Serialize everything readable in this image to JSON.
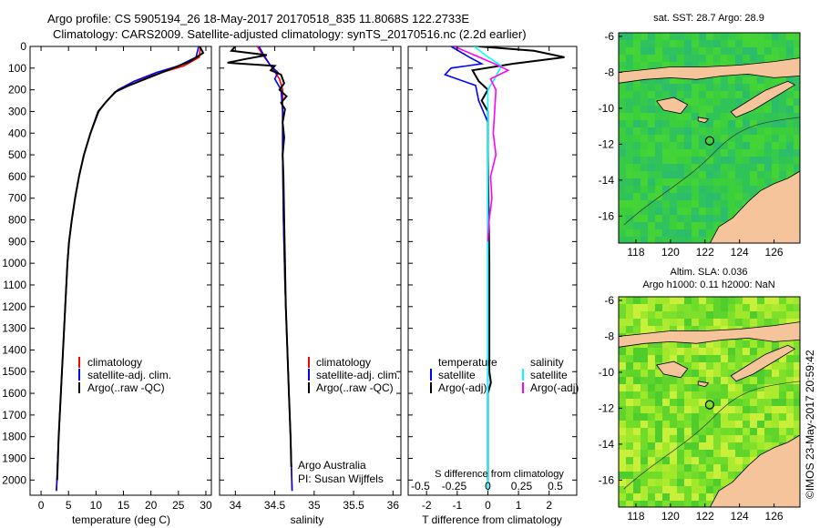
{
  "title": {
    "line1": "Argo profile: CS 5905194_26 18-May-2017 20170518_835 11.8068S 122.2733E",
    "line2": "Climatology: CARS2009. Satellite-adjusted climatology: synTS_20170516.nc (2.2d earlier)"
  },
  "colors": {
    "climatology": "#ff0000",
    "satellite": "#0000ff",
    "argo": "#000000",
    "sal_satellite": "#00ffff",
    "sal_argo": "#ff00ff",
    "land": "#f5c49a",
    "ocean_sst": "#33cc33",
    "ocean_sla": "#66dd22"
  },
  "chart_data": [
    {
      "id": "temperature",
      "type": "line",
      "xlabel": "temperature (deg C)",
      "xlim": [
        -2,
        31
      ],
      "xticks": [
        "0",
        "5",
        "10",
        "15",
        "20",
        "25",
        "30"
      ],
      "xtick_values": [
        0,
        5,
        10,
        15,
        20,
        25,
        30
      ],
      "ylim": [
        2070,
        0
      ],
      "yticks": [
        "0",
        "100",
        "200",
        "300",
        "400",
        "500",
        "600",
        "700",
        "800",
        "900",
        "1000",
        "1100",
        "1200",
        "1300",
        "1400",
        "1500",
        "1600",
        "1700",
        "1800",
        "1900",
        "2000"
      ],
      "ytick_values": [
        0,
        100,
        200,
        300,
        400,
        500,
        600,
        700,
        800,
        900,
        1000,
        1100,
        1200,
        1300,
        1400,
        1500,
        1600,
        1700,
        1800,
        1900,
        2000
      ],
      "legend": [
        "climatology",
        "satellite-adj. clim.",
        "Argo(..raw -QC)"
      ],
      "series": [
        {
          "name": "climatology",
          "color": "red",
          "points": [
            [
              29,
              0
            ],
            [
              28.8,
              50
            ],
            [
              26,
              90
            ],
            [
              22,
              120
            ],
            [
              17,
              160
            ],
            [
              14,
              200
            ],
            [
              12,
              250
            ],
            [
              10.5,
              300
            ],
            [
              9,
              400
            ],
            [
              7.8,
              500
            ],
            [
              6.9,
              600
            ],
            [
              6.2,
              700
            ],
            [
              5.6,
              800
            ],
            [
              5.1,
              900
            ],
            [
              4.8,
              1000
            ],
            [
              4.4,
              1200
            ],
            [
              4,
              1400
            ],
            [
              3.6,
              1600
            ],
            [
              3.2,
              1800
            ],
            [
              2.9,
              2000
            ],
            [
              2.8,
              2050
            ]
          ]
        },
        {
          "name": "satellite-adj. clim.",
          "color": "blue",
          "points": [
            [
              28.7,
              0
            ],
            [
              28.2,
              50
            ],
            [
              25,
              90
            ],
            [
              21,
              120
            ],
            [
              17,
              160
            ],
            [
              14,
              200
            ],
            [
              12,
              250
            ],
            [
              10.5,
              300
            ],
            [
              9,
              400
            ],
            [
              7.8,
              500
            ],
            [
              6.9,
              600
            ],
            [
              6.2,
              700
            ],
            [
              5.6,
              800
            ],
            [
              5.1,
              900
            ],
            [
              4.8,
              1000
            ],
            [
              4.4,
              1200
            ],
            [
              4,
              1400
            ],
            [
              3.6,
              1600
            ],
            [
              3.2,
              1800
            ],
            [
              2.9,
              2000
            ],
            [
              2.8,
              2050
            ]
          ]
        },
        {
          "name": "Argo(..raw -QC)",
          "color": "black",
          "points": [
            [
              28.9,
              0
            ],
            [
              29.5,
              30
            ],
            [
              27,
              70
            ],
            [
              24,
              100
            ],
            [
              20,
              140
            ],
            [
              16,
              180
            ],
            [
              13.5,
              210
            ],
            [
              11.7,
              260
            ],
            [
              10.4,
              300
            ],
            [
              9,
              400
            ],
            [
              7.8,
              500
            ],
            [
              6.9,
              600
            ],
            [
              6.2,
              700
            ],
            [
              5.6,
              800
            ],
            [
              5.1,
              900
            ],
            [
              4.8,
              1000
            ],
            [
              4.4,
              1200
            ],
            [
              4,
              1400
            ],
            [
              3.6,
              1600
            ],
            [
              3.2,
              1800
            ],
            [
              2.95,
              2000
            ]
          ]
        }
      ]
    },
    {
      "id": "salinity",
      "type": "line",
      "xlabel": "salinity",
      "xlim": [
        33.8,
        36.1
      ],
      "xticks": [
        "34",
        "34.5",
        "35",
        "35.5",
        "36"
      ],
      "xtick_values": [
        34,
        34.5,
        35,
        35.5,
        36
      ],
      "ylim": [
        2070,
        0
      ],
      "legend": [
        "climatology",
        "satellite-adj. clim.",
        "Argo(..raw -QC)"
      ],
      "footnote": [
        "Argo Australia",
        "PI: Susan Wijffels"
      ],
      "series": [
        {
          "name": "climatology",
          "color": "red",
          "points": [
            [
              34.28,
              0
            ],
            [
              34.35,
              40
            ],
            [
              34.45,
              90
            ],
            [
              34.56,
              150
            ],
            [
              34.6,
              200
            ],
            [
              34.6,
              300
            ],
            [
              34.6,
              500
            ],
            [
              34.61,
              800
            ],
            [
              34.63,
              1100
            ],
            [
              34.66,
              1400
            ],
            [
              34.68,
              1600
            ],
            [
              34.7,
              1800
            ],
            [
              34.72,
              2050
            ]
          ]
        },
        {
          "name": "satellite-adj. clim.",
          "color": "blue",
          "points": [
            [
              34.3,
              0
            ],
            [
              34.36,
              40
            ],
            [
              34.45,
              90
            ],
            [
              34.54,
              120
            ],
            [
              34.5,
              150
            ],
            [
              34.58,
              200
            ],
            [
              34.6,
              300
            ],
            [
              34.6,
              500
            ],
            [
              34.61,
              800
            ],
            [
              34.63,
              1100
            ],
            [
              34.66,
              1400
            ],
            [
              34.68,
              1600
            ],
            [
              34.7,
              1800
            ],
            [
              34.72,
              2050
            ]
          ]
        },
        {
          "name": "Argo(..raw -QC)",
          "color": "black",
          "points": [
            [
              34.0,
              0
            ],
            [
              33.95,
              20
            ],
            [
              34.4,
              40
            ],
            [
              34.1,
              60
            ],
            [
              33.9,
              75
            ],
            [
              34.5,
              90
            ],
            [
              34.45,
              110
            ],
            [
              34.58,
              130
            ],
            [
              34.62,
              170
            ],
            [
              34.56,
              200
            ],
            [
              34.65,
              230
            ],
            [
              34.58,
              260
            ],
            [
              34.63,
              290
            ],
            [
              34.6,
              350
            ],
            [
              34.62,
              420
            ],
            [
              34.6,
              500
            ],
            [
              34.61,
              600
            ],
            [
              34.62,
              800
            ],
            [
              34.63,
              1000
            ],
            [
              34.64,
              1200
            ],
            [
              34.66,
              1400
            ],
            [
              34.68,
              1600
            ],
            [
              34.7,
              1800
            ],
            [
              34.71,
              1940
            ]
          ]
        }
      ]
    },
    {
      "id": "difference",
      "type": "line",
      "xlabel": "T difference from climatology",
      "xlabel_top": "S difference from climatology",
      "xlim": [
        -2.6,
        2.9
      ],
      "xticks": [
        "-2",
        "-1",
        "0",
        "1",
        "2"
      ],
      "xtick_values": [
        -2,
        -1,
        0,
        1,
        2
      ],
      "xticks_top": [
        "-0.5",
        "-0.25",
        "0",
        "0.25",
        "0.5"
      ],
      "xtick_top_values": [
        -0.5,
        -0.25,
        0,
        0.25,
        0.5
      ],
      "ylim": [
        2070,
        0
      ],
      "legend": {
        "temperature_header": "temperature",
        "salinity_header": "salinity",
        "items": [
          "satellite",
          "Argo(-adj)",
          "satellite",
          "Argo(-adj)"
        ]
      },
      "series": [
        {
          "name": "satellite",
          "group": "temperature",
          "color": "blue",
          "points": [
            [
              -1.2,
              0
            ],
            [
              -0.6,
              50
            ],
            [
              -0.2,
              80
            ],
            [
              -1.2,
              100
            ],
            [
              -1.4,
              130
            ],
            [
              -0.4,
              180
            ],
            [
              -0.3,
              250
            ],
            [
              0,
              350
            ],
            [
              0,
              2050
            ]
          ]
        },
        {
          "name": "Argo(-adj)",
          "group": "temperature",
          "color": "black",
          "points": [
            [
              -0.3,
              0
            ],
            [
              1.5,
              20
            ],
            [
              2.5,
              50
            ],
            [
              0.8,
              80
            ],
            [
              -0.5,
              110
            ],
            [
              -0.3,
              160
            ],
            [
              0,
              200
            ],
            [
              -0.2,
              250
            ],
            [
              0,
              300
            ],
            [
              0,
              500
            ],
            [
              0.05,
              1000
            ],
            [
              0.05,
              1500
            ],
            [
              0.1,
              1550
            ],
            [
              0,
              1600
            ],
            [
              0,
              2000
            ]
          ]
        },
        {
          "name": "satellite",
          "group": "salinity",
          "color": "cyan",
          "points": [
            [
              -0.1,
              0
            ],
            [
              -0.02,
              40
            ],
            [
              0.1,
              90
            ],
            [
              0.05,
              150
            ],
            [
              0,
              200
            ],
            [
              0,
              400
            ],
            [
              0,
              2050
            ]
          ]
        },
        {
          "name": "Argo(-adj)",
          "group": "salinity",
          "color": "magenta",
          "points": [
            [
              -0.25,
              0
            ],
            [
              -0.1,
              40
            ],
            [
              0.05,
              80
            ],
            [
              0.15,
              110
            ],
            [
              0.02,
              150
            ],
            [
              0.06,
              200
            ],
            [
              0.05,
              300
            ],
            [
              0.04,
              400
            ],
            [
              0.06,
              500
            ],
            [
              0.02,
              600
            ],
            [
              0.03,
              700
            ],
            [
              0.01,
              800
            ],
            [
              0,
              900
            ]
          ]
        }
      ]
    },
    {
      "id": "map_sst",
      "type": "heatmap",
      "title": "sat. SST: 28.7  Argo: 28.9",
      "xticks": [
        "118",
        "120",
        "122",
        "124",
        "126"
      ],
      "xtick_values": [
        118,
        120,
        122,
        124,
        126
      ],
      "yticks": [
        "-6",
        "-8",
        "-10",
        "-12",
        "-14",
        "-16"
      ],
      "ytick_values": [
        -6,
        -8,
        -10,
        -12,
        -14,
        -16
      ],
      "xlim": [
        117,
        127.5
      ],
      "ylim": [
        -17.5,
        -5.8
      ],
      "marker": [
        122.27,
        -11.81
      ]
    },
    {
      "id": "map_sla",
      "type": "heatmap",
      "title_line1": "Altim. SLA: 0.036",
      "title_line2": "Argo h1000: 0.11  h2000: NaN",
      "xticks": [
        "118",
        "120",
        "122",
        "124",
        "126"
      ],
      "xtick_values": [
        118,
        120,
        122,
        124,
        126
      ],
      "yticks": [
        "-6",
        "-8",
        "-10",
        "-12",
        "-14",
        "-16"
      ],
      "ytick_values": [
        -6,
        -8,
        -10,
        -12,
        -14,
        -16
      ],
      "xlim": [
        117,
        127.5
      ],
      "ylim": [
        -17.5,
        -5.8
      ],
      "marker": [
        122.27,
        -11.81
      ]
    }
  ],
  "credit": "©IMOS 23-May-2017 20:59:42"
}
